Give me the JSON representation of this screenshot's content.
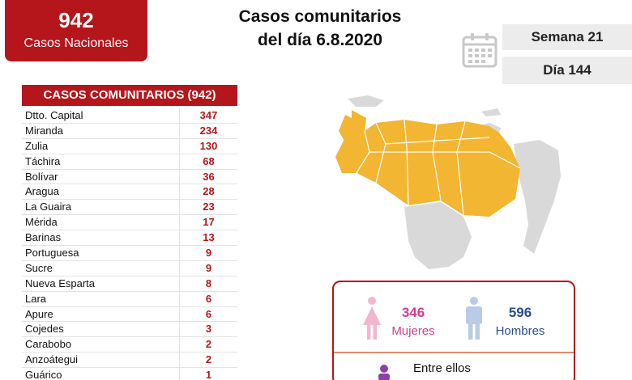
{
  "summary": {
    "total": "942",
    "total_label": "Casos Nacionales"
  },
  "header": {
    "title_line1": "Casos comunitarios",
    "title_line2": "del día 6.8.2020"
  },
  "period": {
    "week": "Semana 21",
    "day": "Día 144"
  },
  "table": {
    "title": "CASOS COMUNITARIOS (942)",
    "rows": [
      {
        "state": "Dtto. Capital",
        "cases": "347"
      },
      {
        "state": "Miranda",
        "cases": "234"
      },
      {
        "state": "Zulia",
        "cases": "130"
      },
      {
        "state": "Táchira",
        "cases": "68"
      },
      {
        "state": "Bolívar",
        "cases": "36"
      },
      {
        "state": "Aragua",
        "cases": "28"
      },
      {
        "state": "La Guaira",
        "cases": "23"
      },
      {
        "state": "Mérida",
        "cases": "17"
      },
      {
        "state": "Barinas",
        "cases": "13"
      },
      {
        "state": "Portuguesa",
        "cases": "9"
      },
      {
        "state": "Sucre",
        "cases": "9"
      },
      {
        "state": "Nueva Esparta",
        "cases": "8"
      },
      {
        "state": "Lara",
        "cases": "6"
      },
      {
        "state": "Apure",
        "cases": "6"
      },
      {
        "state": "Cojedes",
        "cases": "3"
      },
      {
        "state": "Carabobo",
        "cases": "2"
      },
      {
        "state": "Anzoátegui",
        "cases": "2"
      },
      {
        "state": "Guárico",
        "cases": "1"
      }
    ]
  },
  "gender": {
    "women_count": "346",
    "women_label": "Mujeres",
    "men_count": "596",
    "men_label": "Hombres",
    "among_label": "Entre ellos"
  },
  "colors": {
    "brand_red": "#b5161b",
    "map_highlight": "#f2b632",
    "map_other": "#d9d9d9",
    "women": "#d63c8e",
    "men": "#2b4d8f"
  },
  "icons": [
    "calendar-icon",
    "woman-icon",
    "man-icon",
    "venezuela-map"
  ]
}
